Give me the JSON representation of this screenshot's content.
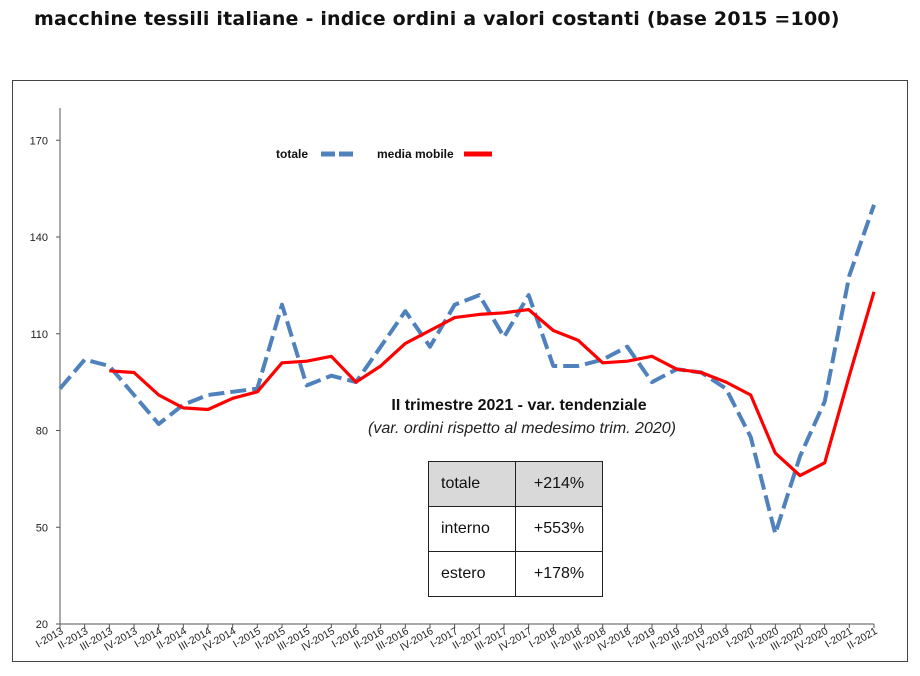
{
  "chart_data": {
    "type": "line",
    "title": "macchine tessili italiane - indice ordini a valori costanti (base 2015 =100)",
    "xlabel": "",
    "ylabel": "",
    "ylim": [
      20,
      180
    ],
    "yticks": [
      20,
      50,
      80,
      110,
      140,
      170
    ],
    "grid": false,
    "legend_position": "top-center",
    "categories": [
      "I-2013",
      "II-2013",
      "III-2013",
      "IV-2013",
      "I-2014",
      "II-2014",
      "III-2014",
      "IV-2014",
      "I-2015",
      "II-2015",
      "III-2015",
      "IV-2015",
      "I-2016",
      "II-2016",
      "III-2016",
      "IV-2016",
      "I-2017",
      "II-2017",
      "III-2017",
      "IV-2017",
      "I-2018",
      "II-2018",
      "III-2018",
      "IV-2018",
      "I-2019",
      "II-2019",
      "III-2019",
      "IV-2019",
      "I-2020",
      "II-2020",
      "III-2020",
      "IV-2020",
      "I-2021",
      "II-2021"
    ],
    "series": [
      {
        "name": "totale",
        "color": "#4f81bd",
        "style": "dashed",
        "values": [
          93,
          102,
          100,
          91,
          82,
          88,
          91,
          92,
          93,
          119,
          94,
          97,
          95,
          106,
          117,
          106,
          119,
          122,
          109,
          122,
          100,
          100,
          102,
          106,
          95,
          99,
          98,
          93,
          78,
          48,
          72,
          89,
          128,
          150
        ]
      },
      {
        "name": "media mobile",
        "color": "#ff0000",
        "style": "solid",
        "values": [
          null,
          null,
          98.5,
          98,
          91,
          87,
          86.5,
          90,
          92,
          101,
          101.5,
          103,
          95,
          100,
          107,
          111,
          115,
          116,
          116.5,
          117.5,
          111,
          108,
          101,
          101.5,
          103,
          99,
          98,
          95,
          91,
          73,
          66,
          70,
          97,
          123
        ]
      }
    ]
  },
  "annotation": {
    "title": "II trimestre 2021 - var. tendenziale",
    "subtitle": "(var. ordini rispetto al medesimo trim. 2020)"
  },
  "variation_table": [
    {
      "label": "totale",
      "value": "+214%"
    },
    {
      "label": "interno",
      "value": "+553%"
    },
    {
      "label": "estero",
      "value": "+178%"
    }
  ]
}
